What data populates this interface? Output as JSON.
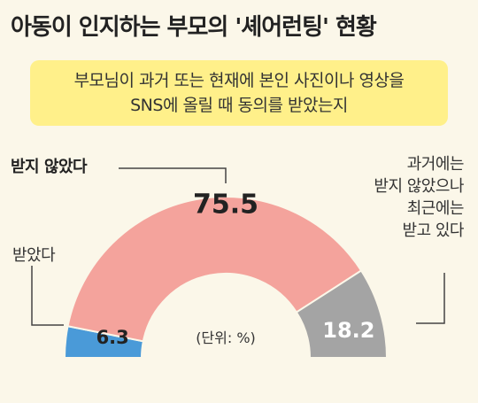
{
  "title": "아동이 인지하는 부모의 '셰어런팅' 현황",
  "question": {
    "line1": "부모님이 과거 또는 현재에 본인 사진이나 영상을",
    "line2": "SNS에 올릴 때 동의를 받았는지"
  },
  "colors": {
    "background": "#fbf7e9",
    "question_box": "#fff08a",
    "yes": "#4a9ad8",
    "not": "#f4a39c",
    "past": "#a4a4a4"
  },
  "chart_data": {
    "type": "pie",
    "shape": "half-donut",
    "unit_note": "(단위: %)",
    "categories": [
      "받았다",
      "받지 않았다",
      "과거에는 받지 않았으나 최근에는 받고 있다"
    ],
    "values": [
      6.3,
      75.5,
      18.2
    ],
    "value_labels": [
      "6.3",
      "75.5",
      "18.2"
    ],
    "legend_labels": {
      "yes": "받았다",
      "not": "받지 않았다",
      "past": [
        "과거에는",
        "받지 않았으나",
        "최근에는",
        "받고 있다"
      ]
    }
  }
}
